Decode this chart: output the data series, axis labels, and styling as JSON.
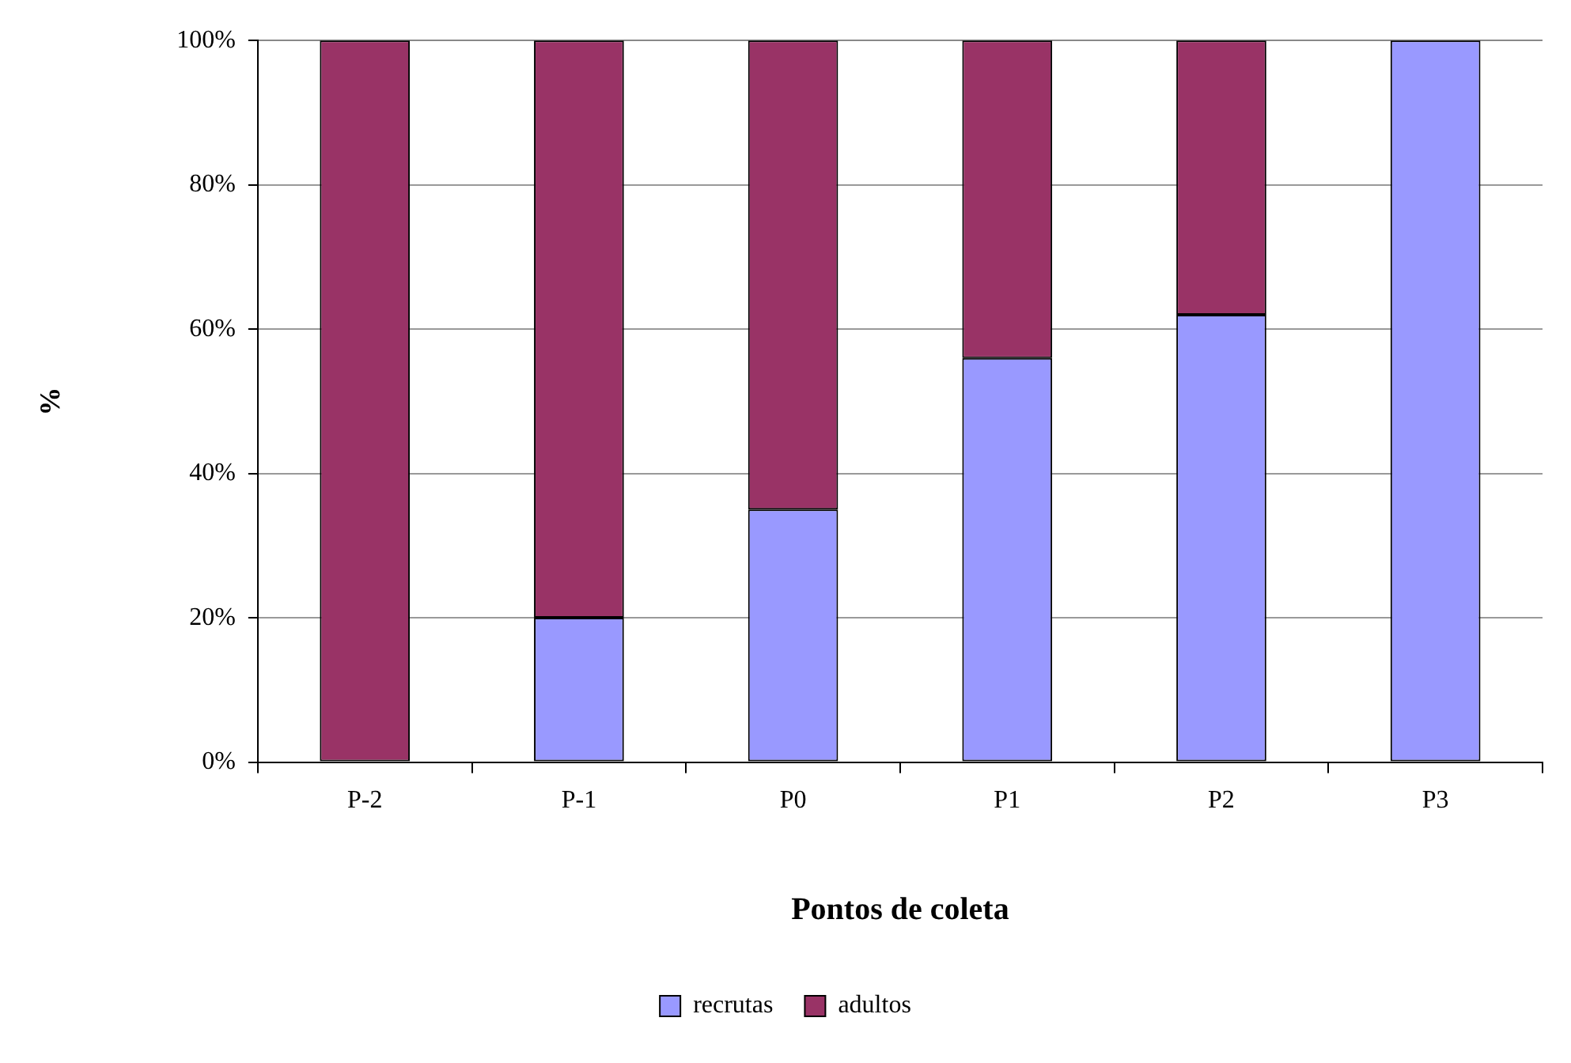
{
  "chart_data": {
    "type": "bar",
    "stacked": true,
    "xlabel": "Pontos de coleta",
    "ylabel": "%",
    "categories": [
      "P-2",
      "P-1",
      "P0",
      "P1",
      "P2",
      "P3"
    ],
    "series": [
      {
        "name": "recrutas",
        "color": "#9999ff",
        "values": [
          0,
          20,
          35,
          56,
          62,
          100
        ]
      },
      {
        "name": "adultos",
        "color": "#993366",
        "values": [
          100,
          80,
          65,
          44,
          38,
          0
        ]
      }
    ],
    "ylim": [
      0,
      100
    ],
    "yticks": [
      {
        "value": 0,
        "label": "0%"
      },
      {
        "value": 20,
        "label": "20%"
      },
      {
        "value": 40,
        "label": "40%"
      },
      {
        "value": 60,
        "label": "60%"
      },
      {
        "value": 80,
        "label": "80%"
      },
      {
        "value": 100,
        "label": "100%"
      }
    ],
    "grid": "y",
    "legend": "bottom"
  }
}
